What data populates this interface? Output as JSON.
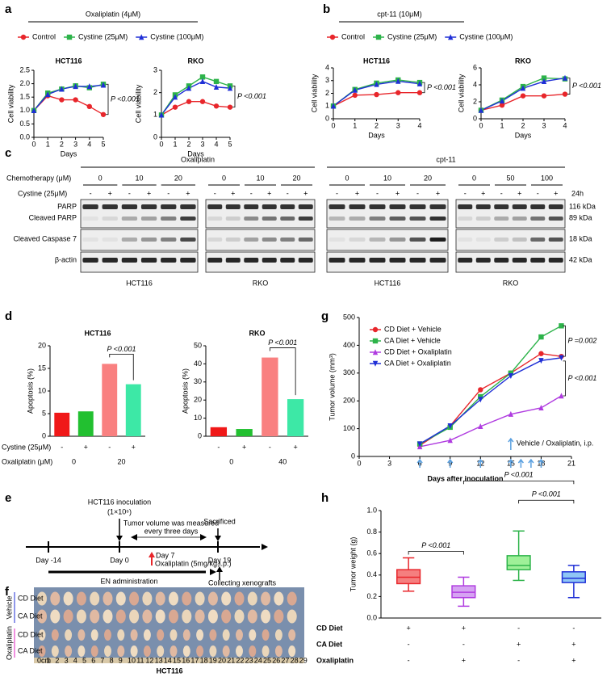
{
  "chart_data": [
    {
      "type": "line",
      "panel_label": "a",
      "supertitle": "Oxaliplatin (4μM)",
      "title": "HCT116",
      "xlabel": "Days",
      "ylabel": "Cell viability",
      "x": [
        0,
        1,
        2,
        3,
        4,
        5
      ],
      "xlim": [
        0,
        5
      ],
      "xticks": [
        0,
        1,
        2,
        3,
        4,
        5
      ],
      "ylim": [
        0,
        2.5
      ],
      "yticks": [
        {
          "value": 0,
          "label": "0.0"
        },
        0.5,
        {
          "value": 1,
          "label": "1.0"
        },
        1.5,
        {
          "value": 2,
          "label": "2.0"
        },
        2.5
      ],
      "series": [
        {
          "name": "Control",
          "color": "#e8262b",
          "marker": "circle",
          "values": [
            1.0,
            1.55,
            1.4,
            1.4,
            1.15,
            0.85
          ]
        },
        {
          "name": "Cystine (25μM)",
          "color": "#2db34a",
          "marker": "square",
          "values": [
            1.0,
            1.65,
            1.8,
            1.92,
            1.85,
            1.98
          ]
        },
        {
          "name": "Cystine (100μM)",
          "color": "#1f2fd6",
          "marker": "triangle",
          "values": [
            1.0,
            1.6,
            1.8,
            1.9,
            1.9,
            1.95
          ]
        }
      ],
      "annotations": [
        "P <0.001"
      ]
    },
    {
      "type": "line",
      "title": "RKO",
      "xlabel": "Days",
      "ylabel": "Cell viability",
      "x": [
        0,
        1,
        2,
        3,
        4,
        5
      ],
      "xlim": [
        0,
        5
      ],
      "xticks": [
        0,
        1,
        2,
        3,
        4,
        5
      ],
      "ylim": [
        0,
        3
      ],
      "yticks": [
        0,
        1,
        2,
        3
      ],
      "series": [
        {
          "color": "#e8262b",
          "marker": "circle",
          "values": [
            1.0,
            1.35,
            1.6,
            1.6,
            1.4,
            1.35
          ]
        },
        {
          "color": "#2db34a",
          "marker": "square",
          "values": [
            1.0,
            1.9,
            2.3,
            2.7,
            2.5,
            2.3
          ]
        },
        {
          "color": "#1f2fd6",
          "marker": "triangle",
          "values": [
            1.0,
            1.8,
            2.2,
            2.5,
            2.25,
            2.2
          ]
        }
      ],
      "annotations": [
        "P <0.001"
      ]
    },
    {
      "type": "line",
      "panel_label": "b",
      "supertitle": "cpt-11 (10μM)",
      "title": "HCT116",
      "xlabel": "Days",
      "ylabel": "Cell viability",
      "x": [
        0,
        1,
        2,
        3,
        4
      ],
      "xlim": [
        0,
        4
      ],
      "xticks": [
        0,
        1,
        2,
        3,
        4
      ],
      "ylim": [
        0,
        4
      ],
      "yticks": [
        0,
        1,
        2,
        3,
        4
      ],
      "series": [
        {
          "name": "Control",
          "color": "#e8262b",
          "marker": "circle",
          "values": [
            1.0,
            1.85,
            1.9,
            2.05,
            2.05
          ]
        },
        {
          "name": "Cystine (25μM)",
          "color": "#2db34a",
          "marker": "square",
          "values": [
            1.0,
            2.3,
            2.8,
            3.05,
            2.85
          ]
        },
        {
          "name": "Cystine (100μM)",
          "color": "#1f2fd6",
          "marker": "triangle",
          "values": [
            1.0,
            2.25,
            2.7,
            2.95,
            2.75
          ]
        }
      ],
      "annotations": [
        "P <0.001"
      ]
    },
    {
      "type": "line",
      "title": "RKO",
      "xlabel": "Days",
      "ylabel": "Cell viability",
      "x": [
        0,
        1,
        2,
        3,
        4
      ],
      "xlim": [
        0,
        4
      ],
      "xticks": [
        0,
        1,
        2,
        3,
        4
      ],
      "ylim": [
        0,
        6
      ],
      "yticks": [
        0,
        2,
        4,
        6
      ],
      "series": [
        {
          "color": "#e8262b",
          "marker": "circle",
          "values": [
            1.0,
            1.6,
            2.7,
            2.7,
            2.9
          ]
        },
        {
          "color": "#2db34a",
          "marker": "square",
          "values": [
            1.0,
            2.2,
            3.8,
            4.8,
            4.7
          ]
        },
        {
          "color": "#1f2fd6",
          "marker": "triangle",
          "values": [
            1.0,
            2.1,
            3.6,
            4.4,
            4.8
          ]
        }
      ],
      "annotations": [
        "P <0.001"
      ]
    },
    {
      "type": "bar",
      "panel_label": "d",
      "title": "HCT116",
      "ylabel": "Apoptosis (%)",
      "values": [
        5.2,
        5.5,
        16,
        11.5
      ],
      "colors": [
        "#f01818",
        "#22c030",
        "#f98080",
        "#3de8a6"
      ],
      "ylim": [
        0,
        20
      ],
      "yticks": [
        0,
        5,
        10,
        15,
        20
      ],
      "rows": [
        {
          "label": "Cystine (25μM)",
          "values": [
            "-",
            "+",
            "-",
            "+"
          ]
        },
        {
          "label": "Oxaliplatin (μM)",
          "values": [
            0,
            20
          ]
        }
      ],
      "annotations": [
        "P <0.001"
      ]
    },
    {
      "type": "bar",
      "title": "RKO",
      "ylabel": "Apoptosis (%)",
      "values": [
        5,
        4,
        43.5,
        20.5
      ],
      "colors": [
        "#f01818",
        "#22c030",
        "#f98080",
        "#3de8a6"
      ],
      "ylim": [
        0,
        50
      ],
      "yticks": [
        0,
        10,
        20,
        30,
        40,
        50
      ],
      "rows": [
        {
          "values": [
            "-",
            "+",
            "-",
            "+"
          ]
        },
        {
          "values": [
            0,
            40
          ]
        }
      ],
      "annotations": [
        "P <0.001"
      ]
    },
    {
      "type": "line",
      "panel_label": "g",
      "xlabel": "Days after inoculation",
      "ylabel": "Tumor volume (mm³)",
      "x": [
        6,
        9,
        12,
        15,
        18,
        20
      ],
      "xlim": [
        0,
        21
      ],
      "xticks": [
        0,
        3,
        6,
        9,
        12,
        15,
        18,
        21
      ],
      "ylim": [
        0,
        500
      ],
      "yticks": [
        0,
        100,
        200,
        300,
        400,
        500
      ],
      "series": [
        {
          "name": "CD Diet + Vehicle",
          "color": "#e8262b",
          "marker": "circle",
          "values": [
            40,
            110,
            240,
            300,
            370,
            360
          ]
        },
        {
          "name": "CA Diet + Vehicle",
          "color": "#2db34a",
          "marker": "square",
          "values": [
            45,
            105,
            215,
            300,
            430,
            470
          ]
        },
        {
          "name": "CD Diet + Oxaliplatin",
          "color": "#b03ce0",
          "marker": "triangle",
          "values": [
            35,
            58,
            108,
            152,
            175,
            218
          ]
        },
        {
          "name": "CA Diet + Oxaliplatin",
          "color": "#1f2fd6",
          "marker": "triangle-down",
          "values": [
            45,
            110,
            205,
            290,
            345,
            355
          ]
        }
      ],
      "dosing_days": [
        6,
        9,
        12,
        15,
        16,
        17,
        18
      ],
      "annotations": [
        "P =0.002",
        "P <0.001",
        "Vehicle / Oxaliplatin, i.p."
      ]
    },
    {
      "type": "box",
      "panel_label": "h",
      "ylabel": "Tumor weight (g)",
      "boxes": [
        {
          "min": 0.25,
          "q1": 0.32,
          "median": 0.38,
          "q3": 0.45,
          "max": 0.56
        },
        {
          "min": 0.11,
          "q1": 0.19,
          "median": 0.24,
          "q3": 0.3,
          "max": 0.38
        },
        {
          "min": 0.35,
          "q1": 0.45,
          "median": 0.49,
          "q3": 0.58,
          "max": 0.81
        },
        {
          "min": 0.19,
          "q1": 0.33,
          "median": 0.37,
          "q3": 0.43,
          "max": 0.49
        }
      ],
      "colors": [
        "#e8262b",
        "#b03ce0",
        "#2db34a",
        "#1f2fd6"
      ],
      "fills": [
        "#f57f7f",
        "#d6a3f2",
        "#9ef098",
        "#8fc6f5"
      ],
      "ylim": [
        0,
        1
      ],
      "yticks": [
        {
          "value": 0,
          "label": "0.0"
        },
        0.2,
        0.4,
        0.6,
        0.8,
        {
          "value": 1,
          "label": "1.0"
        }
      ],
      "rows": [
        {
          "label": "CD Diet",
          "values": [
            "+",
            "+",
            "-",
            "-"
          ]
        },
        {
          "label": "CA Diet",
          "values": [
            "-",
            "-",
            "+",
            "+"
          ]
        },
        {
          "label": "Oxaliplatin",
          "values": [
            "-",
            "+",
            "-",
            "+"
          ]
        }
      ],
      "annotations": [
        "P <0.001",
        "P <0.001",
        "P <0.001"
      ]
    }
  ],
  "blot": {
    "panel_label": "c",
    "treatments": [
      "Oxaliplatin",
      "cpt-11"
    ],
    "chemo_label": "Chemotherapy (μM)",
    "cystine_label": "Cystine (25μM)",
    "doses": [
      [
        0,
        10,
        20
      ],
      [
        0,
        10,
        20
      ],
      [
        0,
        10,
        20
      ],
      [
        0,
        50,
        100
      ]
    ],
    "signs": [
      "-",
      "+"
    ],
    "time": "24h",
    "rows": [
      "PARP",
      "Cleaved PARP",
      "Cleaved Caspase 7",
      "β-actin"
    ],
    "sizes": [
      "116 kDa",
      "89 kDa",
      "18 kDa",
      "42 kDa"
    ],
    "cell_lines": [
      "HCT116",
      "RKO",
      "HCT116",
      "RKO"
    ]
  },
  "timeline": {
    "panel_label": "e",
    "inoculation": "HCT116 inoculation",
    "cell_count": "(1×10⁶)",
    "measure_1": "Tumor volume was measured",
    "measure_2": "every three days",
    "sacrificed": "Sacrificed",
    "day_start": "Day -14",
    "day_0": "Day 0",
    "day_7": "Day 7",
    "drug": "Oxaliplatin (5mg/kg,i.p.)",
    "day_19": "Day 19",
    "en": "EN administration",
    "collect": "Collecting xenografts"
  },
  "photo": {
    "panel_label": "f",
    "groups": [
      {
        "name": "Vehicle",
        "rows": [
          "CD Diet",
          "CA Diet"
        ]
      },
      {
        "name": "Oxaliplatin",
        "rows": [
          "CD Diet",
          "CA Diet"
        ]
      }
    ],
    "ruler": [
      "0cm",
      1,
      2,
      3,
      4,
      5,
      6,
      7,
      8,
      9,
      10,
      11,
      12,
      13,
      14,
      15,
      16,
      17,
      18,
      19,
      20,
      21,
      22,
      23,
      24,
      25,
      26,
      27,
      28,
      29
    ],
    "caption": "HCT116"
  }
}
